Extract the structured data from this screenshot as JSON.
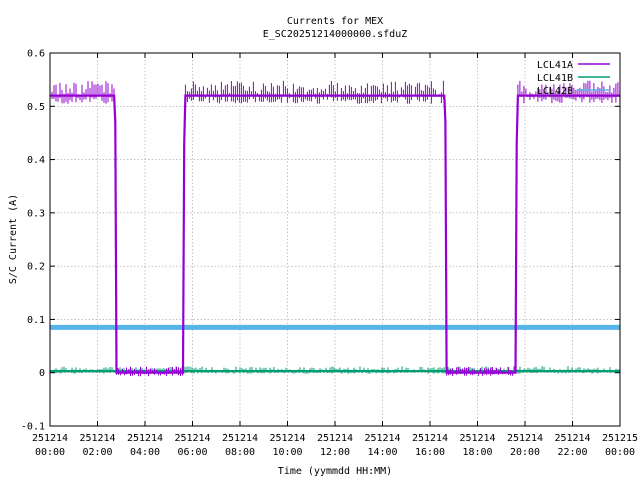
{
  "chart_data": {
    "type": "line",
    "title": "Currents for MEX",
    "subtitle": "E_SC20251214000000.sfduZ",
    "xlabel": "Time (yymmdd HH:MM)",
    "ylabel": "S/C Current (A)",
    "xlim": [
      0,
      24
    ],
    "ylim": [
      -0.1,
      0.6
    ],
    "y_ticks": [
      -0.1,
      0,
      0.1,
      0.2,
      0.3,
      0.4,
      0.5,
      0.6
    ],
    "y_tick_labels": [
      "-0.1",
      "0",
      "0.1",
      "0.2",
      "0.3",
      "0.4",
      "0.5",
      "0.6"
    ],
    "x_ticks": [
      0,
      2,
      4,
      6,
      8,
      10,
      12,
      14,
      16,
      18,
      20,
      22,
      24
    ],
    "x_tick_labels": [
      [
        "251214",
        "00:00"
      ],
      [
        "251214",
        "02:00"
      ],
      [
        "251214",
        "04:00"
      ],
      [
        "251214",
        "06:00"
      ],
      [
        "251214",
        "08:00"
      ],
      [
        "251214",
        "10:00"
      ],
      [
        "251214",
        "12:00"
      ],
      [
        "251214",
        "14:00"
      ],
      [
        "251214",
        "16:00"
      ],
      [
        "251214",
        "18:00"
      ],
      [
        "251214",
        "20:00"
      ],
      [
        "251214",
        "22:00"
      ],
      [
        "251215",
        "00:00"
      ]
    ],
    "grid": true,
    "legend_position": "top-right",
    "series": [
      {
        "name": "LCL41A",
        "color": "#9400d3",
        "points": [
          [
            0,
            0.52
          ],
          [
            2.7,
            0.52
          ],
          [
            2.75,
            0.47
          ],
          [
            2.8,
            0.0
          ],
          [
            5.6,
            0.0
          ],
          [
            5.65,
            0.43
          ],
          [
            5.7,
            0.52
          ],
          [
            16.6,
            0.52
          ],
          [
            16.65,
            0.47
          ],
          [
            16.7,
            0.0
          ],
          [
            19.6,
            0.0
          ],
          [
            19.65,
            0.43
          ],
          [
            19.7,
            0.52
          ],
          [
            24,
            0.52
          ]
        ]
      },
      {
        "name": "LCL41B",
        "color": "#009e73",
        "points": [
          [
            0,
            0.003
          ],
          [
            24,
            0.003
          ]
        ]
      },
      {
        "name": "LCL42B",
        "color": "#56b4e9",
        "points": [
          [
            0,
            0.085
          ],
          [
            24,
            0.085
          ]
        ]
      }
    ]
  }
}
